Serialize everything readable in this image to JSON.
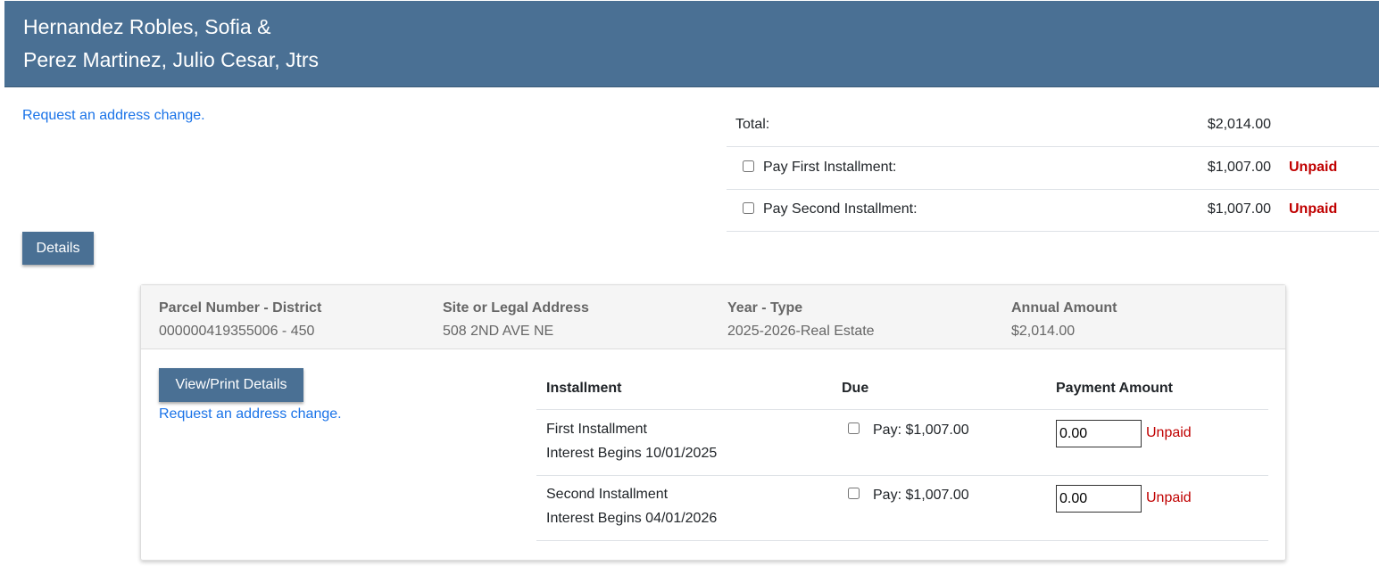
{
  "header": {
    "line1": "Hernandez Robles, Sofia &",
    "line2": "Perez Martinez, Julio Cesar, Jtrs"
  },
  "address_link": "Request an address change.",
  "summary": {
    "total_label": "Total:",
    "total_amount": "$2,014.00",
    "rows": [
      {
        "label": "Pay First Installment:",
        "amount": "$1,007.00",
        "status": "Unpaid"
      },
      {
        "label": "Pay Second Installment:",
        "amount": "$1,007.00",
        "status": "Unpaid"
      }
    ]
  },
  "details_button": "Details",
  "card": {
    "columns": [
      {
        "label": "Parcel Number - District",
        "value": "000000419355006 - 450"
      },
      {
        "label": "Site or Legal Address",
        "value": "508 2ND AVE NE"
      },
      {
        "label": "Year - Type",
        "value": "2025-2026-Real Estate"
      },
      {
        "label": "Annual Amount",
        "value": "$2,014.00"
      }
    ],
    "view_print_button": "View/Print Details",
    "address_link": "Request an address change.",
    "table": {
      "headers": [
        "Installment",
        "Due",
        "Payment Amount"
      ],
      "rows": [
        {
          "name": "First Installment",
          "interest": "Interest Begins 10/01/2025",
          "due": "Pay: $1,007.00",
          "payment": "0.00",
          "status": "Unpaid"
        },
        {
          "name": "Second Installment",
          "interest": "Interest Begins 04/01/2026",
          "due": "Pay: $1,007.00",
          "payment": "0.00",
          "status": "Unpaid"
        }
      ]
    }
  },
  "colors": {
    "header": "#4a7094",
    "link": "#1a73e8",
    "unpaid": "#c00000"
  }
}
